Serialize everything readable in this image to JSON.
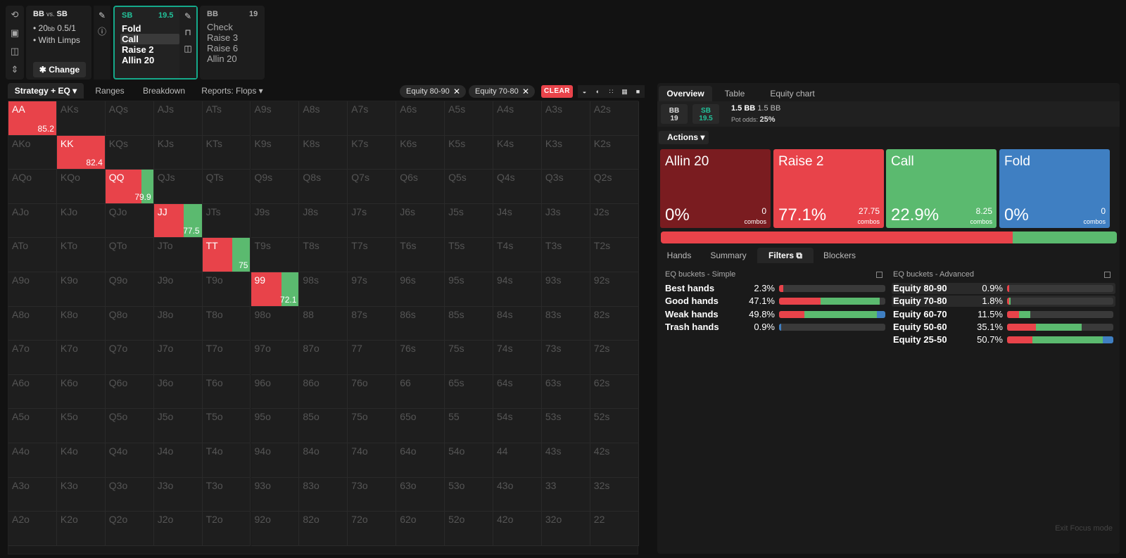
{
  "sidebar": {
    "icons": [
      "undo-icon",
      "save-icon",
      "gamepad-icon",
      "expand-icon"
    ],
    "glyphs": [
      "⟲",
      "▣",
      "◫",
      "⇕"
    ]
  },
  "scenario": {
    "title": "BB",
    "vs": "vs.",
    "title2": "SB",
    "line1_stack": "20",
    "line1_unit": "bb",
    "line1_blinds": "0.5/1",
    "line2": "With Limps",
    "change": "Change"
  },
  "node_sb": {
    "player": "SB",
    "stack": "19.5",
    "actions": [
      "Fold",
      "Call",
      "Raise 2",
      "Allin 20"
    ],
    "selected": 1
  },
  "node_bb": {
    "player": "BB",
    "stack": "19",
    "actions": [
      "Check",
      "Raise 3",
      "Raise 6",
      "Allin 20"
    ]
  },
  "left_tabs": [
    "Strategy + EQ",
    "Ranges",
    "Breakdown",
    "Reports: Flops"
  ],
  "filters": [
    "Equity 80-90",
    "Equity 70-80"
  ],
  "clear": "CLEAR",
  "view_icons": [
    "◒",
    "◐",
    "∷",
    "▦",
    "■"
  ],
  "grid": {
    "rows": [
      [
        "AA",
        "AKs",
        "AQs",
        "AJs",
        "ATs",
        "A9s",
        "A8s",
        "A7s",
        "A6s",
        "A5s",
        "A4s",
        "A3s",
        "A2s"
      ],
      [
        "AKo",
        "KK",
        "KQs",
        "KJs",
        "KTs",
        "K9s",
        "K8s",
        "K7s",
        "K6s",
        "K5s",
        "K4s",
        "K3s",
        "K2s"
      ],
      [
        "AQo",
        "KQo",
        "QQ",
        "QJs",
        "QTs",
        "Q9s",
        "Q8s",
        "Q7s",
        "Q6s",
        "Q5s",
        "Q4s",
        "Q3s",
        "Q2s"
      ],
      [
        "AJo",
        "KJo",
        "QJo",
        "JJ",
        "JTs",
        "J9s",
        "J8s",
        "J7s",
        "J6s",
        "J5s",
        "J4s",
        "J3s",
        "J2s"
      ],
      [
        "ATo",
        "KTo",
        "QTo",
        "JTo",
        "TT",
        "T9s",
        "T8s",
        "T7s",
        "T6s",
        "T5s",
        "T4s",
        "T3s",
        "T2s"
      ],
      [
        "A9o",
        "K9o",
        "Q9o",
        "J9o",
        "T9o",
        "99",
        "98s",
        "97s",
        "96s",
        "95s",
        "94s",
        "93s",
        "92s"
      ],
      [
        "A8o",
        "K8o",
        "Q8o",
        "J8o",
        "T8o",
        "98o",
        "88",
        "87s",
        "86s",
        "85s",
        "84s",
        "83s",
        "82s"
      ],
      [
        "A7o",
        "K7o",
        "Q7o",
        "J7o",
        "T7o",
        "97o",
        "87o",
        "77",
        "76s",
        "75s",
        "74s",
        "73s",
        "72s"
      ],
      [
        "A6o",
        "K6o",
        "Q6o",
        "J6o",
        "T6o",
        "96o",
        "86o",
        "76o",
        "66",
        "65s",
        "64s",
        "63s",
        "62s"
      ],
      [
        "A5o",
        "K5o",
        "Q5o",
        "J5o",
        "T5o",
        "95o",
        "85o",
        "75o",
        "65o",
        "55",
        "54s",
        "53s",
        "52s"
      ],
      [
        "A4o",
        "K4o",
        "Q4o",
        "J4o",
        "T4o",
        "94o",
        "84o",
        "74o",
        "64o",
        "54o",
        "44",
        "43s",
        "42s"
      ],
      [
        "A3o",
        "K3o",
        "Q3o",
        "J3o",
        "T3o",
        "93o",
        "83o",
        "73o",
        "63o",
        "53o",
        "43o",
        "33",
        "32s"
      ],
      [
        "A2o",
        "K2o",
        "Q2o",
        "J2o",
        "T2o",
        "92o",
        "82o",
        "72o",
        "62o",
        "52o",
        "42o",
        "32o",
        "22"
      ]
    ],
    "active": [
      {
        "r": 0,
        "c": 0,
        "eq": "85.2",
        "raise": 1.0
      },
      {
        "r": 1,
        "c": 1,
        "eq": "82.4",
        "raise": 1.0
      },
      {
        "r": 2,
        "c": 2,
        "eq": "79.9",
        "raise": 0.76
      },
      {
        "r": 3,
        "c": 3,
        "eq": "77.5",
        "raise": 0.62
      },
      {
        "r": 4,
        "c": 4,
        "eq": "75",
        "raise": 0.63
      },
      {
        "r": 5,
        "c": 5,
        "eq": "72.1",
        "raise": 0.64
      }
    ]
  },
  "right_tabs": [
    "Overview",
    "Table",
    "Equity chart"
  ],
  "info": {
    "bb_label": "BB",
    "bb_stack": "19",
    "sb_label": "SB",
    "sb_stack": "19.5",
    "pot_bold": "1.5 BB",
    "pot_light": "1.5 BB",
    "pot_odds_label": "Pot odds:",
    "pot_odds": "25%"
  },
  "actions_btn": "Actions",
  "actions": [
    {
      "name": "Allin 20",
      "pct": "0%",
      "combos": "0",
      "combos_label": "combos",
      "color": "#7a1c20"
    },
    {
      "name": "Raise 2",
      "pct": "77.1%",
      "combos": "27.75",
      "combos_label": "combos",
      "color": "#e8434a"
    },
    {
      "name": "Call",
      "pct": "22.9%",
      "combos": "8.25",
      "combos_label": "combos",
      "color": "#5bba6f"
    },
    {
      "name": "Fold",
      "pct": "0%",
      "combos": "0",
      "combos_label": "combos",
      "color": "#3f7fc2"
    }
  ],
  "strategy_bar": {
    "raise": 0.771,
    "call": 0.229
  },
  "bottom_tabs": [
    "Hands",
    "Summary",
    "Filters",
    "Blockers"
  ],
  "eq_simple": {
    "title": "EQ buckets - Simple",
    "rows": [
      {
        "name": "Best hands",
        "pct": "2.3%",
        "bar": [
          [
            "#e8434a",
            0.04
          ]
        ]
      },
      {
        "name": "Good hands",
        "pct": "47.1%",
        "bar": [
          [
            "#e8434a",
            0.39
          ],
          [
            "#5bba6f",
            0.56
          ]
        ]
      },
      {
        "name": "Weak hands",
        "pct": "49.8%",
        "bar": [
          [
            "#e8434a",
            0.24
          ],
          [
            "#5bba6f",
            0.68
          ],
          [
            "#3f7fc2",
            0.08
          ]
        ]
      },
      {
        "name": "Trash hands",
        "pct": "0.9%",
        "bar": [
          [
            "#3f7fc2",
            0.02
          ]
        ]
      }
    ]
  },
  "eq_advanced": {
    "title": "EQ buckets - Advanced",
    "rows": [
      {
        "name": "Equity 80-90",
        "pct": "0.9%",
        "bar": [
          [
            "#e8434a",
            0.02
          ]
        ],
        "hl": true
      },
      {
        "name": "Equity 70-80",
        "pct": "1.8%",
        "bar": [
          [
            "#e8434a",
            0.02
          ],
          [
            "#5bba6f",
            0.01
          ]
        ],
        "hl": true
      },
      {
        "name": "Equity 60-70",
        "pct": "11.5%",
        "bar": [
          [
            "#e8434a",
            0.11
          ],
          [
            "#5bba6f",
            0.11
          ]
        ]
      },
      {
        "name": "Equity 50-60",
        "pct": "35.1%",
        "bar": [
          [
            "#e8434a",
            0.27
          ],
          [
            "#5bba6f",
            0.43
          ]
        ]
      },
      {
        "name": "Equity 25-50",
        "pct": "50.7%",
        "bar": [
          [
            "#e8434a",
            0.24
          ],
          [
            "#5bba6f",
            0.66
          ],
          [
            "#3f7fc2",
            0.1
          ]
        ]
      }
    ]
  },
  "exit_focus": "Exit Focus mode"
}
